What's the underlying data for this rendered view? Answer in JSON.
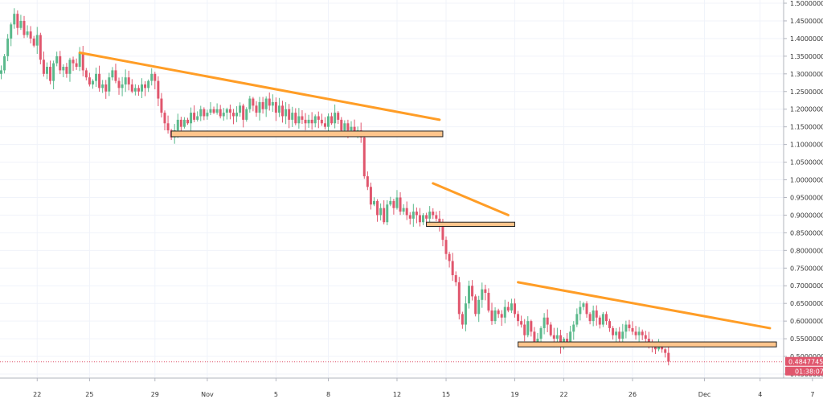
{
  "chart_data": {
    "type": "candlestick",
    "title": "",
    "xlabel": "",
    "ylabel": "",
    "grid": true,
    "ylim": [
      0.42,
      1.5
    ],
    "y_ticks": [
      "1.50000000",
      "1.45000000",
      "1.40000000",
      "1.35000000",
      "1.30000000",
      "1.25000000",
      "1.20000000",
      "1.15000000",
      "1.10000000",
      "1.05000000",
      "1.00000000",
      "0.95000000",
      "0.90000000",
      "0.85000000",
      "0.80000000",
      "0.75000000",
      "0.70000000",
      "0.65000000",
      "0.60000000",
      "0.55000000",
      "0.50000000",
      "0.45000000"
    ],
    "y_tick_values": [
      1.5,
      1.45,
      1.4,
      1.35,
      1.3,
      1.25,
      1.2,
      1.15,
      1.1,
      1.05,
      1.0,
      0.95,
      0.9,
      0.85,
      0.8,
      0.75,
      0.7,
      0.65,
      0.6,
      0.55,
      0.5,
      0.45
    ],
    "x_ticks": [
      "22",
      "25",
      "29",
      "Nov",
      "5",
      "8",
      "12",
      "15",
      "19",
      "22",
      "26",
      "Dec",
      "4",
      "7"
    ],
    "x_tick_index": [
      11,
      27,
      47,
      63,
      84,
      100,
      121,
      136,
      157,
      172,
      193,
      215,
      232,
      248
    ],
    "current_price": "0.48477455",
    "countdown": "01:38:07",
    "colors": {
      "up": "#5bb98c",
      "down": "#e0566d",
      "trendline": "#ff9d26",
      "zone_fill": "#ffc58c",
      "zone_stroke": "#222222",
      "price_line": "#e0566d",
      "price_badge": "#e0566d"
    },
    "closes": [
      1.31,
      1.35,
      1.4,
      1.44,
      1.47,
      1.43,
      1.45,
      1.41,
      1.42,
      1.4,
      1.38,
      1.41,
      1.34,
      1.3,
      1.32,
      1.28,
      1.33,
      1.35,
      1.31,
      1.32,
      1.3,
      1.34,
      1.33,
      1.32,
      1.36,
      1.31,
      1.29,
      1.27,
      1.28,
      1.3,
      1.26,
      1.27,
      1.25,
      1.29,
      1.31,
      1.28,
      1.26,
      1.27,
      1.29,
      1.27,
      1.25,
      1.26,
      1.25,
      1.27,
      1.26,
      1.28,
      1.3,
      1.28,
      1.23,
      1.19,
      1.16,
      1.14,
      1.12,
      1.14,
      1.17,
      1.15,
      1.17,
      1.16,
      1.19,
      1.17,
      1.18,
      1.2,
      1.18,
      1.19,
      1.2,
      1.19,
      1.2,
      1.18,
      1.19,
      1.2,
      1.19,
      1.18,
      1.19,
      1.21,
      1.17,
      1.2,
      1.23,
      1.21,
      1.19,
      1.22,
      1.2,
      1.23,
      1.21,
      1.22,
      1.19,
      1.21,
      1.18,
      1.2,
      1.17,
      1.19,
      1.16,
      1.18,
      1.17,
      1.16,
      1.17,
      1.16,
      1.18,
      1.17,
      1.16,
      1.15,
      1.18,
      1.16,
      1.19,
      1.17,
      1.14,
      1.16,
      1.14,
      1.15,
      1.13,
      1.14,
      1.12,
      1.01,
      0.98,
      0.93,
      0.94,
      0.9,
      0.92,
      0.88,
      0.93,
      0.94,
      0.92,
      0.95,
      0.91,
      0.92,
      0.9,
      0.89,
      0.91,
      0.9,
      0.88,
      0.9,
      0.89,
      0.91,
      0.9,
      0.89,
      0.87,
      0.83,
      0.79,
      0.77,
      0.73,
      0.71,
      0.62,
      0.59,
      0.65,
      0.7,
      0.67,
      0.62,
      0.66,
      0.69,
      0.68,
      0.63,
      0.6,
      0.63,
      0.62,
      0.61,
      0.64,
      0.63,
      0.65,
      0.62,
      0.6,
      0.59,
      0.56,
      0.6,
      0.57,
      0.54,
      0.55,
      0.58,
      0.61,
      0.59,
      0.56,
      0.55,
      0.56,
      0.53,
      0.55,
      0.54,
      0.57,
      0.59,
      0.62,
      0.64,
      0.65,
      0.62,
      0.6,
      0.63,
      0.61,
      0.59,
      0.62,
      0.6,
      0.58,
      0.56,
      0.57,
      0.55,
      0.57,
      0.59,
      0.58,
      0.57,
      0.56,
      0.57,
      0.56,
      0.55,
      0.54,
      0.53,
      0.52,
      0.53,
      0.52,
      0.51,
      0.485
    ],
    "annotations": [
      {
        "kind": "trendline",
        "x": [
          24,
          134
        ],
        "y": [
          1.36,
          1.17
        ]
      },
      {
        "kind": "zone",
        "x": [
          52,
          135
        ],
        "y": [
          1.122,
          1.138
        ]
      },
      {
        "kind": "trendline",
        "x": [
          132,
          155
        ],
        "y": [
          0.99,
          0.9
        ]
      },
      {
        "kind": "zone",
        "x": [
          130,
          157
        ],
        "y": [
          0.868,
          0.88
        ]
      },
      {
        "kind": "trendline",
        "x": [
          158,
          235
        ],
        "y": [
          0.71,
          0.58
        ]
      },
      {
        "kind": "zone",
        "x": [
          158,
          237
        ],
        "y": [
          0.527,
          0.541
        ]
      }
    ]
  }
}
